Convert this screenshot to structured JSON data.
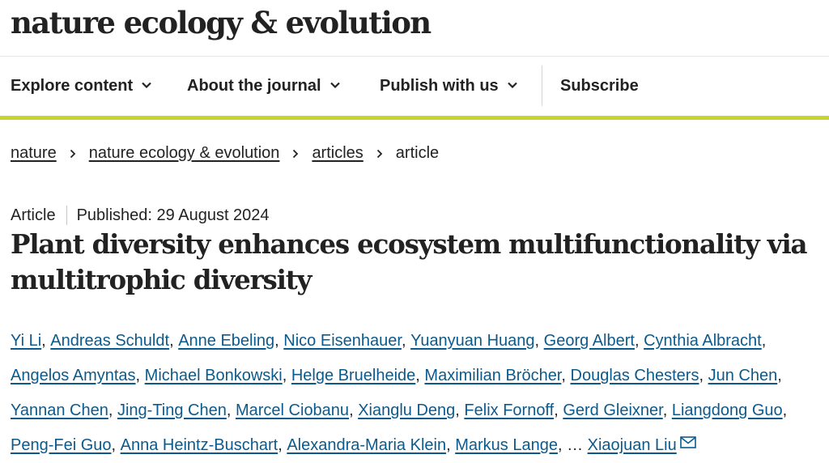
{
  "header": {
    "brand": "nature ecology & evolution"
  },
  "nav": {
    "explore": "Explore content",
    "about": "About the journal",
    "publish": "Publish with us",
    "subscribe": "Subscribe"
  },
  "breadcrumb": [
    "nature",
    "nature ecology & evolution",
    "articles",
    "article"
  ],
  "article": {
    "type": "Article",
    "published": "Published: 29 August 2024",
    "title": "Plant diversity enhances ecosystem multifunctionality via multitrophic diversity",
    "authors": [
      "Yi Li",
      "Andreas Schuldt",
      "Anne Ebeling",
      "Nico Eisenhauer",
      "Yuanyuan Huang",
      "Georg Albert",
      "Cynthia Albracht",
      "Angelos Amyntas",
      "Michael Bonkowski",
      "Helge Bruelheide",
      "Maximilian Bröcher",
      "Douglas Chesters",
      "Jun Chen",
      "Yannan Chen",
      "Jing-Ting Chen",
      "Marcel Ciobanu",
      "Xianglu Deng",
      "Felix Fornoff",
      "Gerd Gleixner",
      "Liangdong Guo",
      "Peng-Fei Guo",
      "Anna Heintz-Buschart",
      "Alexandra-Maria Klein",
      "Markus Lange"
    ],
    "ellipsis": "…",
    "last_author": "Xiaojuan Liu"
  },
  "icons": {
    "nav_dropdown": "chevron-down-icon",
    "crumb_separator": "chevron-right-icon",
    "contact": "mail-icon"
  },
  "colors": {
    "accent_bar": "#c8d62b",
    "author_link": "#0c5a8c",
    "text": "#222222"
  }
}
